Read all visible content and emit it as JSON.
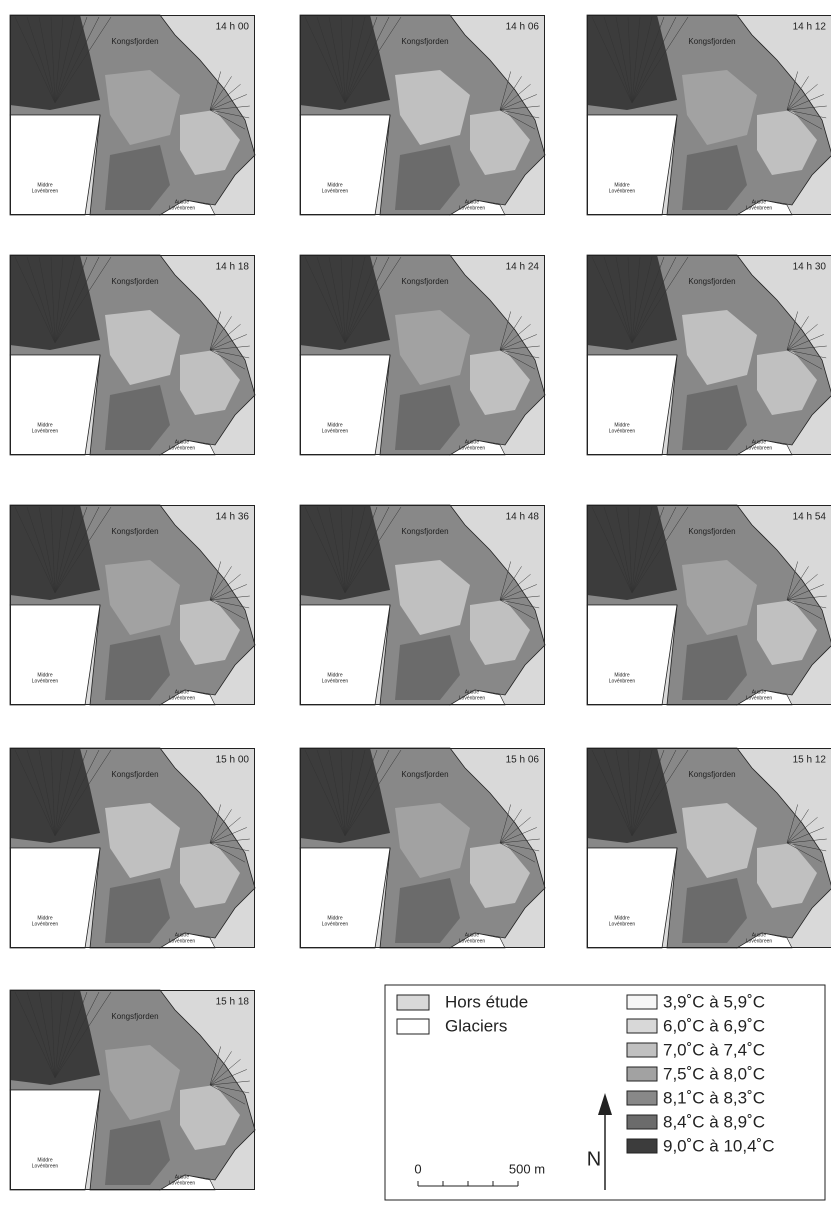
{
  "panels": [
    {
      "time": "14 h 00"
    },
    {
      "time": "14 h 06"
    },
    {
      "time": "14 h 12"
    },
    {
      "time": "14 h 18"
    },
    {
      "time": "14 h 24"
    },
    {
      "time": "14 h 30"
    },
    {
      "time": "14 h 36"
    },
    {
      "time": "14 h 48"
    },
    {
      "time": "14 h 54"
    },
    {
      "time": "15 h 00"
    },
    {
      "time": "15 h 06"
    },
    {
      "time": "15 h 12"
    },
    {
      "time": "15 h 18"
    }
  ],
  "map_labels": {
    "fjord": "Kongsfjorden",
    "west_glacier": [
      "Middre",
      "Lovénbreen"
    ],
    "east_glacier": [
      "Austre",
      "Lovénbreen"
    ]
  },
  "legend": {
    "areas": [
      {
        "label": "Hors étude",
        "color": "#d9d9d9"
      },
      {
        "label": "Glaciers",
        "color": "#ffffff"
      }
    ],
    "classes": [
      {
        "label": "3,9˚C à 5,9˚C",
        "color": "#f6f6f6"
      },
      {
        "label": "6,0˚C à 6,9˚C",
        "color": "#d8d8d8"
      },
      {
        "label": "7,0˚C à 7,4˚C",
        "color": "#c0c0c0"
      },
      {
        "label": "7,5˚C à 8,0˚C",
        "color": "#a2a2a2"
      },
      {
        "label": "8,1˚C à 8,3˚C",
        "color": "#888888"
      },
      {
        "label": "8,4˚C à 8,9˚C",
        "color": "#6b6b6b"
      },
      {
        "label": "9,0˚C à 10,4˚C",
        "color": "#3c3c3c"
      }
    ],
    "scale": [
      "0",
      "500 m"
    ],
    "north": "N"
  }
}
